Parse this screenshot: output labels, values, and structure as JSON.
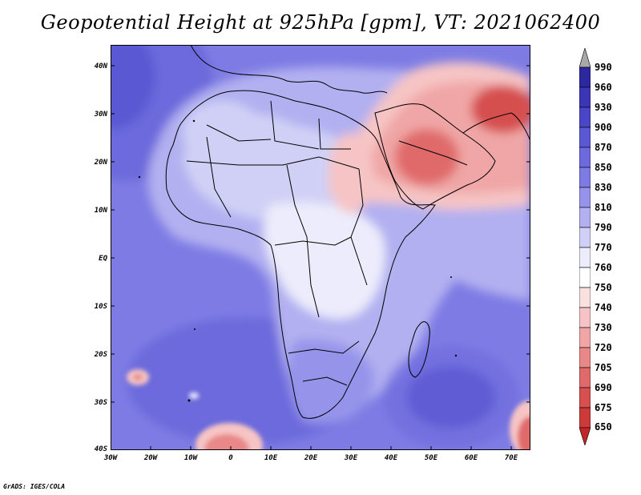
{
  "title": "Geopotential Height at 925hPa [gpm], VT: 2021062400",
  "credit": "GrADS: IGES/COLA",
  "lat_labels": [
    "40N",
    "30N",
    "20N",
    "10N",
    "EQ",
    "10S",
    "20S",
    "30S",
    "40S"
  ],
  "lon_labels": [
    "30W",
    "20W",
    "10W",
    "0",
    "10E",
    "20E",
    "30E",
    "40E",
    "50E",
    "60E",
    "70E"
  ],
  "colorbar": {
    "labels": [
      "990",
      "960",
      "930",
      "900",
      "870",
      "850",
      "830",
      "810",
      "790",
      "770",
      "760",
      "750",
      "740",
      "730",
      "720",
      "705",
      "690",
      "675",
      "650"
    ],
    "colors": [
      "#2e28a0",
      "#3a36b6",
      "#4a46c8",
      "#5a58d2",
      "#6c6adc",
      "#7e7ce4",
      "#9694ea",
      "#b2b0f0",
      "#d0d0f6",
      "#ececfc",
      "#ffffff",
      "#fbe0e0",
      "#f6c4c4",
      "#f0a6a6",
      "#e98888",
      "#e06a6a",
      "#d65050",
      "#cc3a3a",
      "#c02828"
    ],
    "over_color": "#a9a9a9"
  },
  "fields": {
    "ocean": "#7e7ce4",
    "atlantic_deep": "#6c6adc",
    "atlantic_core": "#5a58d2",
    "continent": "#b2b0f0",
    "sahara": "#d0d0f6",
    "central": "#ececfc",
    "south": "#9694ea",
    "indian": "#b2b0f0",
    "mascarene": "#4a46c8",
    "arabia_light": "#f6c4c4",
    "arabia_mid": "#f0a6a6",
    "arabia_core": "#e06a6a",
    "iran": "#d65050",
    "low_sw": "#e98888",
    "low_se": "#e06a6a"
  }
}
